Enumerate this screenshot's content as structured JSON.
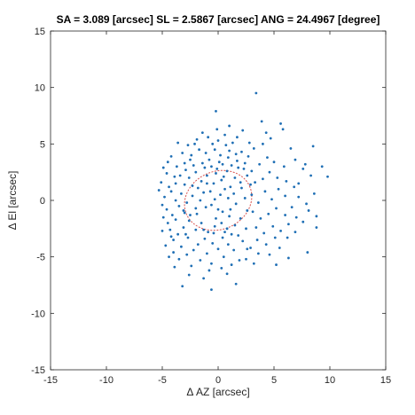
{
  "chart_data": {
    "type": "scatter",
    "title": "SA = 3.089 [arcsec]  SL = 2.5867 [arcsec]  ANG = 24.4967 [degree]",
    "xlabel": "Δ AZ [arcsec]",
    "ylabel": "Δ El [arcsec]",
    "xlim": [
      -15,
      15
    ],
    "ylim": [
      -15,
      15
    ],
    "xticks": [
      -15,
      -10,
      -5,
      0,
      5,
      10,
      15
    ],
    "yticks": [
      -15,
      -10,
      -5,
      0,
      5,
      10,
      15
    ],
    "grid": false,
    "colors": {
      "points": "#1f6fb5",
      "ellipse": "#d9534f"
    },
    "ellipse": {
      "center": [
        0,
        0
      ],
      "semi_major": 3.089,
      "semi_minor": 2.5867,
      "angle_deg": 24.4967
    },
    "points": [
      [
        0.5,
        2.1
      ],
      [
        0.8,
        2.6
      ],
      [
        1.2,
        3.1
      ],
      [
        0.3,
        1.8
      ],
      [
        -0.2,
        2.4
      ],
      [
        1.5,
        2.0
      ],
      [
        2.0,
        1.6
      ],
      [
        1.1,
        1.2
      ],
      [
        -0.6,
        3.0
      ],
      [
        0.1,
        3.4
      ],
      [
        0.9,
        3.8
      ],
      [
        1.7,
        3.5
      ],
      [
        2.3,
        2.8
      ],
      [
        -1.0,
        2.2
      ],
      [
        -1.5,
        1.7
      ],
      [
        -2.0,
        2.5
      ],
      [
        -2.6,
        2.0
      ],
      [
        -3.0,
        1.4
      ],
      [
        -0.4,
        1.5
      ],
      [
        0.6,
        1.0
      ],
      [
        1.4,
        0.6
      ],
      [
        2.1,
        1.1
      ],
      [
        -1.2,
        2.9
      ],
      [
        -0.8,
        3.6
      ],
      [
        0.2,
        4.0
      ],
      [
        1.0,
        4.4
      ],
      [
        -2.2,
        3.1
      ],
      [
        -2.9,
        2.7
      ],
      [
        -3.4,
        2.2
      ],
      [
        -3.8,
        1.5
      ],
      [
        -1.8,
        1.1
      ],
      [
        -0.1,
        2.8
      ],
      [
        0.4,
        3.2
      ],
      [
        1.8,
        2.9
      ],
      [
        2.6,
        2.2
      ],
      [
        2.9,
        1.4
      ],
      [
        -1.4,
        3.3
      ],
      [
        -2.5,
        3.6
      ],
      [
        -0.3,
        4.5
      ],
      [
        0.7,
        4.9
      ],
      [
        -1.1,
        4.2
      ],
      [
        1.6,
        4.1
      ],
      [
        2.4,
        3.3
      ],
      [
        -0.7,
        0.8
      ],
      [
        -2.3,
        1.3
      ],
      [
        -3.3,
        0.6
      ],
      [
        0.0,
        5.3
      ],
      [
        -0.5,
        5.0
      ],
      [
        0.3,
        -2.0
      ],
      [
        0.8,
        -2.5
      ],
      [
        -0.3,
        -2.3
      ],
      [
        1.2,
        -3.0
      ],
      [
        -0.9,
        -2.8
      ],
      [
        -1.5,
        -2.0
      ],
      [
        -2.0,
        -2.6
      ],
      [
        -2.6,
        -1.8
      ],
      [
        -3.1,
        -2.4
      ],
      [
        -3.6,
        -3.0
      ],
      [
        -1.2,
        -3.4
      ],
      [
        -0.5,
        -3.8
      ],
      [
        0.4,
        -3.3
      ],
      [
        1.5,
        -2.2
      ],
      [
        2.0,
        -1.6
      ],
      [
        1.0,
        -1.4
      ],
      [
        -1.8,
        -3.9
      ],
      [
        -2.7,
        -3.3
      ],
      [
        -3.3,
        -4.1
      ],
      [
        -4.0,
        -3.5
      ],
      [
        -4.3,
        -2.6
      ],
      [
        -2.2,
        -4.4
      ],
      [
        -1.0,
        -4.7
      ],
      [
        0.0,
        -4.3
      ],
      [
        0.9,
        -3.9
      ],
      [
        1.8,
        -3.1
      ],
      [
        2.5,
        -2.5
      ],
      [
        -0.2,
        -1.6
      ],
      [
        -1.9,
        -1.2
      ],
      [
        -3.0,
        -1.1
      ],
      [
        -3.8,
        -1.7
      ],
      [
        -4.5,
        -2.0
      ],
      [
        -2.8,
        -4.8
      ],
      [
        -1.6,
        -5.3
      ],
      [
        -0.6,
        -5.6
      ],
      [
        0.5,
        -5.0
      ],
      [
        1.4,
        -4.4
      ],
      [
        -3.5,
        -5.2
      ],
      [
        -2.4,
        -5.8
      ],
      [
        -0.8,
        -6.2
      ],
      [
        0.3,
        -6.0
      ],
      [
        -4.0,
        -4.6
      ],
      [
        2.2,
        -3.6
      ],
      [
        -1.3,
        -2.6
      ],
      [
        -0.4,
        -2.9
      ],
      [
        0.6,
        -2.8
      ],
      [
        -2.9,
        -3.0
      ],
      [
        -4.2,
        -3.2
      ],
      [
        -3.8,
        0.0
      ],
      [
        -4.2,
        0.8
      ],
      [
        -3.5,
        -0.5
      ],
      [
        -4.6,
        -0.8
      ],
      [
        -2.8,
        -0.2
      ],
      [
        -2.3,
        0.4
      ],
      [
        -1.6,
        0.0
      ],
      [
        -1.1,
        -0.6
      ],
      [
        -4.8,
        0.3
      ],
      [
        -5.0,
        -0.4
      ],
      [
        -3.1,
        -0.9
      ],
      [
        -4.4,
        1.2
      ],
      [
        -3.9,
        2.1
      ],
      [
        -4.6,
        2.4
      ],
      [
        -5.1,
        1.6
      ],
      [
        -4.1,
        -1.3
      ],
      [
        -4.9,
        -1.5
      ],
      [
        -3.7,
        3.0
      ],
      [
        -3.0,
        3.3
      ],
      [
        -4.5,
        3.4
      ],
      [
        -2.4,
        4.0
      ],
      [
        -1.7,
        4.5
      ],
      [
        -3.2,
        4.2
      ],
      [
        -2.0,
        -0.7
      ],
      [
        3.0,
        0.5
      ],
      [
        3.6,
        -0.2
      ],
      [
        4.2,
        0.8
      ],
      [
        4.8,
        0.1
      ],
      [
        5.4,
        1.0
      ],
      [
        6.0,
        0.4
      ],
      [
        3.3,
        1.6
      ],
      [
        4.0,
        1.9
      ],
      [
        4.6,
        2.5
      ],
      [
        5.3,
        2.0
      ],
      [
        6.1,
        1.7
      ],
      [
        6.8,
        1.2
      ],
      [
        3.1,
        -1.0
      ],
      [
        3.8,
        -1.6
      ],
      [
        4.5,
        -1.2
      ],
      [
        5.2,
        -0.7
      ],
      [
        6.0,
        -1.3
      ],
      [
        6.6,
        -0.6
      ],
      [
        7.2,
        0.3
      ],
      [
        3.4,
        -2.4
      ],
      [
        4.1,
        -2.9
      ],
      [
        4.9,
        -2.3
      ],
      [
        5.6,
        -2.7
      ],
      [
        6.3,
        -2.1
      ],
      [
        7.0,
        -1.5
      ],
      [
        3.0,
        2.6
      ],
      [
        3.7,
        3.2
      ],
      [
        4.4,
        3.8
      ],
      [
        5.0,
        3.4
      ],
      [
        5.9,
        3.0
      ],
      [
        2.7,
        3.9
      ],
      [
        3.2,
        4.6
      ],
      [
        4.0,
        5.0
      ],
      [
        4.7,
        5.5
      ],
      [
        3.5,
        -3.5
      ],
      [
        4.3,
        -3.9
      ],
      [
        5.1,
        -3.3
      ],
      [
        2.9,
        -4.2
      ],
      [
        3.6,
        -4.7
      ],
      [
        4.6,
        -4.8
      ],
      [
        2.5,
        -5.2
      ],
      [
        3.2,
        -5.6
      ],
      [
        5.5,
        -4.2
      ],
      [
        6.2,
        -3.3
      ],
      [
        6.9,
        -2.8
      ],
      [
        7.6,
        -1.9
      ],
      [
        8.1,
        -0.9
      ],
      [
        8.6,
        0.6
      ],
      [
        8.3,
        2.2
      ],
      [
        7.6,
        2.8
      ],
      [
        6.9,
        3.6
      ],
      [
        7.9,
        -0.3
      ],
      [
        8.8,
        -1.4
      ],
      [
        7.2,
        1.5
      ],
      [
        9.3,
        3.0
      ],
      [
        9.8,
        2.1
      ],
      [
        8.5,
        4.8
      ],
      [
        7.8,
        3.2
      ],
      [
        6.5,
        4.6
      ],
      [
        5.8,
        6.3
      ],
      [
        4.3,
        6.0
      ],
      [
        3.9,
        7.0
      ],
      [
        5.6,
        6.8
      ],
      [
        3.4,
        9.5
      ],
      [
        -0.2,
        7.9
      ],
      [
        -3.2,
        -7.6
      ],
      [
        -0.6,
        -7.9
      ],
      [
        1.6,
        -7.4
      ],
      [
        5.2,
        -5.7
      ],
      [
        6.3,
        -5.1
      ],
      [
        8.0,
        -4.6
      ],
      [
        8.8,
        -2.4
      ],
      [
        2.1,
        4.3
      ],
      [
        1.3,
        5.1
      ],
      [
        -1.9,
        5.4
      ],
      [
        -2.7,
        4.9
      ],
      [
        -3.6,
        5.1
      ],
      [
        2.6,
        -4.3
      ],
      [
        1.9,
        -5.3
      ],
      [
        -4.7,
        -4.0
      ],
      [
        -4.4,
        -5.0
      ],
      [
        -3.9,
        -5.9
      ],
      [
        -2.6,
        -6.6
      ],
      [
        -1.3,
        -6.9
      ],
      [
        0.8,
        -6.5
      ],
      [
        1.2,
        -5.7
      ],
      [
        -5.0,
        -2.7
      ],
      [
        -5.3,
        0.9
      ],
      [
        -4.9,
        2.9
      ],
      [
        -4.2,
        3.9
      ],
      [
        -2.1,
        5.0
      ],
      [
        -0.9,
        5.6
      ],
      [
        0.6,
        5.8
      ],
      [
        1.7,
        5.6
      ],
      [
        2.8,
        5.1
      ],
      [
        -0.1,
        6.3
      ],
      [
        -1.4,
        6.0
      ],
      [
        1.0,
        6.6
      ],
      [
        2.2,
        6.2
      ],
      [
        0.2,
        0.5
      ],
      [
        0.9,
        0.2
      ],
      [
        1.6,
        -0.3
      ],
      [
        -0.6,
        -0.4
      ],
      [
        0.4,
        -1.0
      ],
      [
        1.1,
        -0.8
      ],
      [
        2.4,
        0.2
      ],
      [
        2.6,
        -0.9
      ],
      [
        -0.3,
        0.1
      ],
      [
        -1.3,
        0.7
      ],
      [
        -2.5,
        -1.3
      ],
      [
        -1.0,
        1.5
      ],
      [
        0.0,
        -0.8
      ]
    ]
  }
}
